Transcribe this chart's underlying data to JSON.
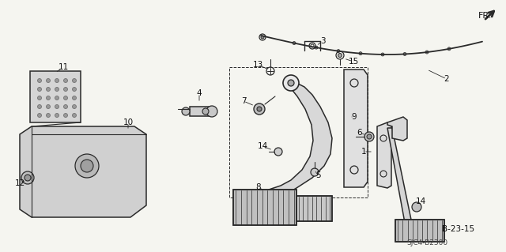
{
  "background_color": "#f5f5f0",
  "diagram_color": "#2a2a2a",
  "figsize": [
    6.4,
    3.19
  ],
  "dpi": 100,
  "part_code": "SJC4-B2300",
  "ref_label": "B-23-15",
  "fr_text": "FR."
}
